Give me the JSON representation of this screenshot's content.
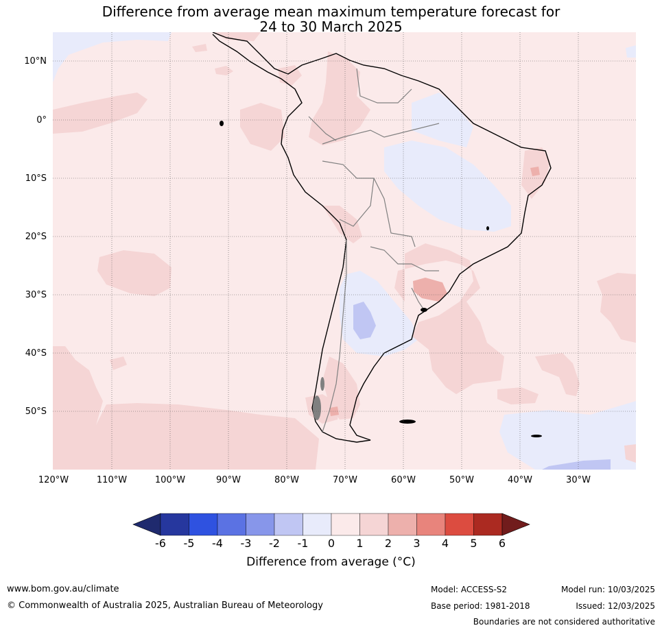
{
  "title": {
    "line1": "Difference from average mean maximum temperature forecast for",
    "line2": "24 to 30 March 2025"
  },
  "map": {
    "latitude_labels": [
      "10°N",
      "0°",
      "10°S",
      "20°S",
      "30°S",
      "40°S",
      "50°S"
    ],
    "longitude_labels": [
      "120°W",
      "110°W",
      "100°W",
      "90°W",
      "80°W",
      "70°W",
      "60°W",
      "50°W",
      "40°W",
      "30°W"
    ]
  },
  "colorbar": {
    "ticks": [
      "-6",
      "-5",
      "-4",
      "-3",
      "-2",
      "-1",
      "0",
      "1",
      "2",
      "3",
      "4",
      "5",
      "6"
    ],
    "colors": [
      "#26379e",
      "#2f52e0",
      "#5b72e3",
      "#8796ea",
      "#c0c6f3",
      "#e8ebfb",
      "#fbeaea",
      "#f5d5d5",
      "#edb0ac",
      "#e8847c",
      "#dc4c40",
      "#ab2a21"
    ],
    "under_color": "#1f2a6e",
    "over_color": "#711c1c",
    "label": "Difference from average (°C)"
  },
  "footer": {
    "website": "www.bom.gov.au/climate",
    "copyright": "© Commonwealth of Australia 2025, Australian Bureau of Meteorology",
    "model": "Model: ACCESS-S2",
    "base_period": "Base period: 1981-2018",
    "model_run": "Model run: 10/03/2025",
    "issued": "Issued: 12/03/2025",
    "disclaimer": "Boundaries are not considered authoritative"
  }
}
